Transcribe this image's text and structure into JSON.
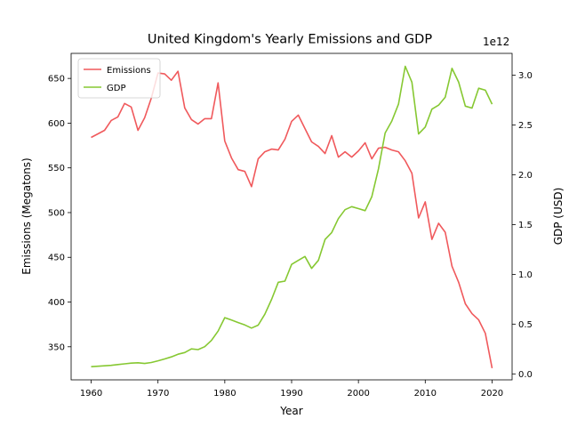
{
  "chart_data": {
    "type": "line",
    "title": "United Kingdom's Yearly Emissions and GDP",
    "xlabel": "Year",
    "ylabel": "Emissions (Megatons)",
    "y2label": "GDP (USD)",
    "y2_offset_label": "1e12",
    "xlim": [
      1957,
      2023
    ],
    "ylim": [
      313,
      678
    ],
    "y2lim": [
      -60000000000.0,
      3220000000000.0
    ],
    "xticks": [
      1960,
      1970,
      1980,
      1990,
      2000,
      2010,
      2020
    ],
    "yticks": [
      350,
      400,
      450,
      500,
      550,
      600,
      650
    ],
    "y2ticks": [
      0.0,
      0.5,
      1.0,
      1.5,
      2.0,
      2.5,
      3.0
    ],
    "y2ticklabels": [
      "0.0",
      "0.5",
      "1.0",
      "1.5",
      "2.0",
      "2.5",
      "3.0"
    ],
    "legend_position": "top-left",
    "grid": false,
    "x": [
      1960,
      1961,
      1962,
      1963,
      1964,
      1965,
      1966,
      1967,
      1968,
      1969,
      1970,
      1971,
      1972,
      1973,
      1974,
      1975,
      1976,
      1977,
      1978,
      1979,
      1980,
      1981,
      1982,
      1983,
      1984,
      1985,
      1986,
      1987,
      1988,
      1989,
      1990,
      1991,
      1992,
      1993,
      1994,
      1995,
      1996,
      1997,
      1998,
      1999,
      2000,
      2001,
      2002,
      2003,
      2004,
      2005,
      2006,
      2007,
      2008,
      2009,
      2010,
      2011,
      2012,
      2013,
      2014,
      2015,
      2016,
      2017,
      2018,
      2019,
      2020
    ],
    "series": [
      {
        "name": "Emissions",
        "axis": "left",
        "color": "#f0595c",
        "values": [
          584,
          588,
          592,
          603,
          607,
          622,
          618,
          592,
          606,
          628,
          656,
          655,
          648,
          658,
          617,
          604,
          599,
          605,
          605,
          645,
          580,
          561,
          548,
          546,
          529,
          560,
          568,
          571,
          570,
          582,
          602,
          609,
          594,
          579,
          574,
          566,
          586,
          562,
          568,
          562,
          569,
          578,
          560,
          572,
          573,
          570,
          568,
          558,
          544,
          494,
          512,
          470,
          488,
          478,
          440,
          422,
          398,
          387,
          380,
          365,
          326
        ]
      },
      {
        "name": "GDP",
        "axis": "right",
        "color": "#86c832",
        "values": [
          72000000000.0,
          77000000000.0,
          81000000000.0,
          86000000000.0,
          94000000000.0,
          101000000000.0,
          108000000000.0,
          112000000000.0,
          104000000000.0,
          114000000000.0,
          131000000000.0,
          150000000000.0,
          171000000000.0,
          197000000000.0,
          214000000000.0,
          251000000000.0,
          244000000000.0,
          273000000000.0,
          336000000000.0,
          430000000000.0,
          565000000000.0,
          541000000000.0,
          516000000000.0,
          491000000000.0,
          460000000000.0,
          490000000000.0,
          600000000000.0,
          749000000000.0,
          920000000000.0,
          932000000000.0,
          1100000000000.0,
          1140000000000.0,
          1180000000000.0,
          1060000000000.0,
          1140000000000.0,
          1350000000000.0,
          1420000000000.0,
          1560000000000.0,
          1650000000000.0,
          1680000000000.0,
          1660000000000.0,
          1640000000000.0,
          1780000000000.0,
          2060000000000.0,
          2420000000000.0,
          2540000000000.0,
          2710000000000.0,
          3090000000000.0,
          2930000000000.0,
          2410000000000.0,
          2480000000000.0,
          2660000000000.0,
          2700000000000.0,
          2780000000000.0,
          3070000000000.0,
          2930000000000.0,
          2690000000000.0,
          2670000000000.0,
          2870000000000.0,
          2850000000000.0,
          2710000000000.0
        ]
      }
    ]
  }
}
